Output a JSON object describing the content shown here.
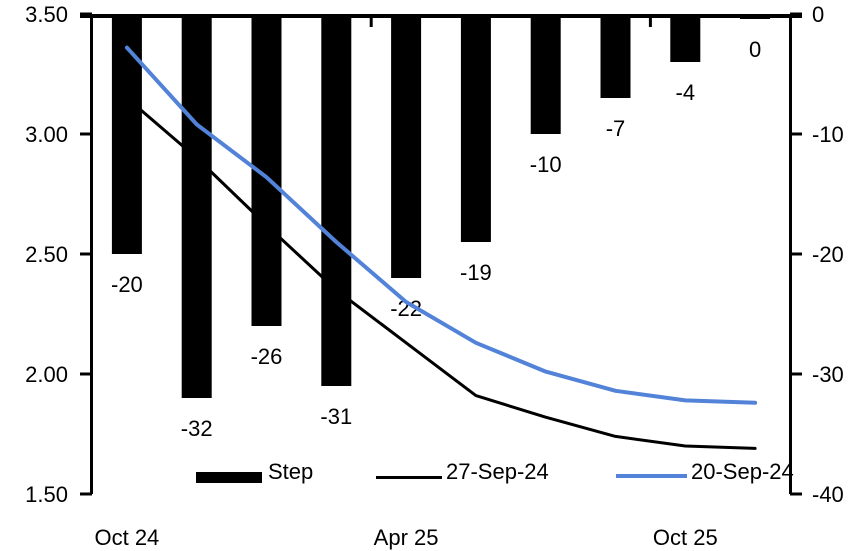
{
  "chart_data": {
    "type": "combo-bar-line",
    "title": "",
    "categories_count": 10,
    "x_tick_labels": [
      {
        "category_index": 0,
        "label": "Oct 24"
      },
      {
        "category_index": 4,
        "label": "Apr 25"
      },
      {
        "category_index": 8,
        "label": "Oct 25"
      }
    ],
    "left_axis": {
      "min": 1.5,
      "max": 3.5,
      "step": 0.5,
      "tick_labels": [
        "3.50",
        "3.00",
        "2.50",
        "2.00",
        "1.50"
      ]
    },
    "right_axis": {
      "min": -40,
      "max": 0,
      "step": -10,
      "tick_labels": [
        "0",
        "-10",
        "-20",
        "-30",
        "-40"
      ]
    },
    "series": [
      {
        "name": "Step",
        "type": "bar",
        "axis": "right",
        "color": "#000000",
        "values": [
          -20,
          -32,
          -26,
          -31,
          -22,
          -19,
          -10,
          -7,
          -4,
          0
        ],
        "data_labels": [
          "-20",
          "-32",
          "-26",
          "-31",
          "-22",
          "-19",
          "-10",
          "-7",
          "-4",
          "0"
        ]
      },
      {
        "name": "27-Sep-24",
        "type": "line",
        "axis": "left",
        "color": "#000000",
        "stroke_width": 3,
        "values": [
          3.15,
          2.9,
          2.62,
          2.35,
          2.13,
          1.91,
          1.82,
          1.74,
          1.7,
          1.69
        ]
      },
      {
        "name": "20-Sep-24",
        "type": "line",
        "axis": "left",
        "color": "#5283D8",
        "stroke_width": 4,
        "values": [
          3.36,
          3.04,
          2.82,
          2.55,
          2.3,
          2.13,
          2.01,
          1.93,
          1.89,
          1.88
        ]
      }
    ],
    "legend": {
      "position": "bottom-inside",
      "items": [
        {
          "label": "Step",
          "swatch": "bar",
          "color": "#000000"
        },
        {
          "label": "27-Sep-24",
          "swatch": "line",
          "color": "#000000"
        },
        {
          "label": "20-Sep-24",
          "swatch": "line",
          "color": "#5283D8"
        }
      ]
    },
    "grid": "off"
  }
}
